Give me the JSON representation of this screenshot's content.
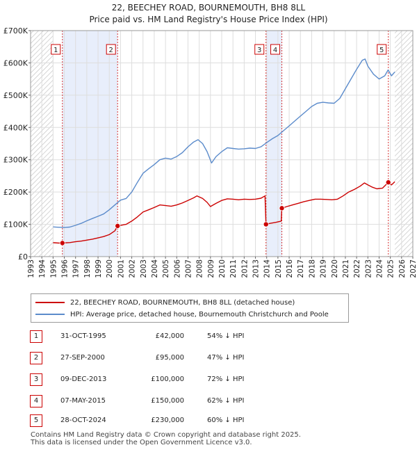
{
  "header": {
    "title_line1": "22, BEECHEY ROAD, BOURNEMOUTH, BH8 8LL",
    "title_line2": "Price paid vs. HM Land Registry's House Price Index (HPI)"
  },
  "colors": {
    "property": "#cc0000",
    "hpi": "#5b8bcb",
    "shade": "#e8eefb",
    "grid": "#dddddd",
    "marker_line": "#cc0000"
  },
  "chart_data": {
    "type": "line",
    "title": "22, BEECHEY ROAD, BOURNEMOUTH, BH8 8LL — Price paid vs. HM Land Registry's House Price Index (HPI)",
    "xlabel": "",
    "ylabel": "",
    "xlim": [
      1993,
      2027
    ],
    "ylim": [
      0,
      700000
    ],
    "x_ticks": [
      1993,
      1994,
      1995,
      1996,
      1997,
      1998,
      1999,
      2000,
      2001,
      2002,
      2003,
      2004,
      2005,
      2006,
      2007,
      2008,
      2009,
      2010,
      2011,
      2012,
      2013,
      2014,
      2015,
      2016,
      2017,
      2018,
      2019,
      2020,
      2021,
      2022,
      2023,
      2024,
      2025,
      2026,
      2027
    ],
    "y_ticks": [
      0,
      100000,
      200000,
      300000,
      400000,
      500000,
      600000,
      700000
    ],
    "y_tick_labels": [
      "£0",
      "£100K",
      "£200K",
      "£300K",
      "£400K",
      "£500K",
      "£600K",
      "£700K"
    ],
    "grid": true,
    "shaded_spans": [
      [
        1995.83,
        2000.74
      ],
      [
        2013.94,
        2015.35
      ]
    ],
    "hatched_after": 2025.4,
    "transactions": [
      {
        "label": "1",
        "date": "31-OCT-1995",
        "x": 1995.83,
        "price": 42000,
        "price_label": "£42,000",
        "hpi_diff": "54% ↓ HPI"
      },
      {
        "label": "2",
        "date": "27-SEP-2000",
        "x": 2000.74,
        "price": 95000,
        "price_label": "£95,000",
        "hpi_diff": "47% ↓ HPI"
      },
      {
        "label": "3",
        "date": "09-DEC-2013",
        "x": 2013.94,
        "price": 100000,
        "price_label": "£100,000",
        "hpi_diff": "72% ↓ HPI"
      },
      {
        "label": "4",
        "date": "07-MAY-2015",
        "x": 2015.35,
        "price": 150000,
        "price_label": "£150,000",
        "hpi_diff": "62% ↓ HPI"
      },
      {
        "label": "5",
        "date": "28-OCT-2024",
        "x": 2024.82,
        "price": 230000,
        "price_label": "£230,000",
        "hpi_diff": "60% ↓ HPI"
      }
    ],
    "series": [
      {
        "name": "22, BEECHEY ROAD, BOURNEMOUTH, BH8 8LL (detached house)",
        "color": "#cc0000",
        "points": [
          [
            1995.0,
            43000
          ],
          [
            1995.5,
            42000
          ],
          [
            1995.83,
            42000
          ],
          [
            1996.5,
            43500
          ],
          [
            1997.0,
            46000
          ],
          [
            1997.5,
            48000
          ],
          [
            1998.0,
            51000
          ],
          [
            1998.5,
            54000
          ],
          [
            1999.0,
            58000
          ],
          [
            1999.5,
            62000
          ],
          [
            2000.0,
            68000
          ],
          [
            2000.5,
            80000
          ],
          [
            2000.74,
            95000
          ],
          [
            2001.5,
            100000
          ],
          [
            2002.0,
            110000
          ],
          [
            2002.5,
            123000
          ],
          [
            2003.0,
            138000
          ],
          [
            2003.5,
            145000
          ],
          [
            2004.0,
            152000
          ],
          [
            2004.5,
            160000
          ],
          [
            2005.0,
            158000
          ],
          [
            2005.5,
            156000
          ],
          [
            2006.0,
            160000
          ],
          [
            2006.5,
            166000
          ],
          [
            2007.0,
            174000
          ],
          [
            2007.5,
            182000
          ],
          [
            2007.8,
            188000
          ],
          [
            2008.3,
            180000
          ],
          [
            2008.7,
            168000
          ],
          [
            2009.0,
            155000
          ],
          [
            2009.5,
            165000
          ],
          [
            2010.0,
            174000
          ],
          [
            2010.5,
            179000
          ],
          [
            2011.0,
            178000
          ],
          [
            2011.5,
            176000
          ],
          [
            2012.0,
            178000
          ],
          [
            2012.5,
            177000
          ],
          [
            2013.0,
            178000
          ],
          [
            2013.5,
            181000
          ],
          [
            2013.85,
            188000
          ],
          [
            2013.94,
            100000
          ],
          [
            2014.3,
            103000
          ],
          [
            2014.8,
            106000
          ],
          [
            2015.3,
            110000
          ],
          [
            2015.35,
            150000
          ],
          [
            2015.8,
            155000
          ],
          [
            2016.3,
            160000
          ],
          [
            2016.8,
            165000
          ],
          [
            2017.3,
            170000
          ],
          [
            2017.8,
            174000
          ],
          [
            2018.3,
            178000
          ],
          [
            2018.8,
            178000
          ],
          [
            2019.3,
            177000
          ],
          [
            2019.8,
            176000
          ],
          [
            2020.3,
            178000
          ],
          [
            2020.8,
            188000
          ],
          [
            2021.3,
            200000
          ],
          [
            2021.8,
            208000
          ],
          [
            2022.3,
            218000
          ],
          [
            2022.7,
            228000
          ],
          [
            2023.0,
            222000
          ],
          [
            2023.4,
            215000
          ],
          [
            2023.8,
            210000
          ],
          [
            2024.3,
            212000
          ],
          [
            2024.82,
            230000
          ],
          [
            2025.1,
            222000
          ],
          [
            2025.4,
            232000
          ]
        ]
      },
      {
        "name": "HPI: Average price, detached house, Bournemouth Christchurch and Poole",
        "color": "#5b8bcb",
        "points": [
          [
            1995.0,
            92000
          ],
          [
            1995.5,
            91000
          ],
          [
            1996.0,
            90000
          ],
          [
            1996.5,
            91500
          ],
          [
            1997.0,
            97000
          ],
          [
            1997.5,
            103000
          ],
          [
            1998.0,
            111000
          ],
          [
            1998.5,
            118000
          ],
          [
            1999.0,
            125000
          ],
          [
            1999.5,
            132000
          ],
          [
            2000.0,
            145000
          ],
          [
            2000.5,
            160000
          ],
          [
            2001.0,
            175000
          ],
          [
            2001.5,
            180000
          ],
          [
            2002.0,
            200000
          ],
          [
            2002.5,
            230000
          ],
          [
            2003.0,
            258000
          ],
          [
            2003.5,
            272000
          ],
          [
            2004.0,
            285000
          ],
          [
            2004.5,
            300000
          ],
          [
            2005.0,
            305000
          ],
          [
            2005.5,
            302000
          ],
          [
            2006.0,
            310000
          ],
          [
            2006.5,
            322000
          ],
          [
            2007.0,
            340000
          ],
          [
            2007.5,
            355000
          ],
          [
            2007.9,
            362000
          ],
          [
            2008.3,
            350000
          ],
          [
            2008.7,
            325000
          ],
          [
            2009.1,
            290000
          ],
          [
            2009.5,
            310000
          ],
          [
            2010.0,
            325000
          ],
          [
            2010.5,
            337000
          ],
          [
            2011.0,
            335000
          ],
          [
            2011.5,
            333000
          ],
          [
            2012.0,
            334000
          ],
          [
            2012.5,
            336000
          ],
          [
            2013.0,
            335000
          ],
          [
            2013.5,
            340000
          ],
          [
            2014.0,
            353000
          ],
          [
            2014.5,
            365000
          ],
          [
            2015.0,
            375000
          ],
          [
            2015.5,
            390000
          ],
          [
            2016.0,
            405000
          ],
          [
            2016.5,
            420000
          ],
          [
            2017.0,
            435000
          ],
          [
            2017.5,
            450000
          ],
          [
            2018.0,
            465000
          ],
          [
            2018.5,
            475000
          ],
          [
            2019.0,
            478000
          ],
          [
            2019.5,
            476000
          ],
          [
            2020.0,
            475000
          ],
          [
            2020.5,
            490000
          ],
          [
            2021.0,
            520000
          ],
          [
            2021.5,
            550000
          ],
          [
            2022.0,
            580000
          ],
          [
            2022.5,
            608000
          ],
          [
            2022.75,
            612000
          ],
          [
            2023.0,
            590000
          ],
          [
            2023.5,
            565000
          ],
          [
            2024.0,
            550000
          ],
          [
            2024.5,
            560000
          ],
          [
            2024.8,
            578000
          ],
          [
            2025.1,
            560000
          ],
          [
            2025.4,
            572000
          ]
        ]
      }
    ]
  },
  "legend": {
    "property_label": "22, BEECHEY ROAD, BOURNEMOUTH, BH8 8LL (detached house)",
    "hpi_label": "HPI: Average price, detached house, Bournemouth Christchurch and Poole"
  },
  "table": {
    "rows": [
      {
        "num": "1",
        "date": "31-OCT-1995",
        "price": "£42,000",
        "hpi": "54% ↓ HPI"
      },
      {
        "num": "2",
        "date": "27-SEP-2000",
        "price": "£95,000",
        "hpi": "47% ↓ HPI"
      },
      {
        "num": "3",
        "date": "09-DEC-2013",
        "price": "£100,000",
        "hpi": "72% ↓ HPI"
      },
      {
        "num": "4",
        "date": "07-MAY-2015",
        "price": "£150,000",
        "hpi": "62% ↓ HPI"
      },
      {
        "num": "5",
        "date": "28-OCT-2024",
        "price": "£230,000",
        "hpi": "60% ↓ HPI"
      }
    ]
  },
  "footer": {
    "line1": "Contains HM Land Registry data © Crown copyright and database right 2025.",
    "line2": "This data is licensed under the Open Government Licence v3.0."
  }
}
